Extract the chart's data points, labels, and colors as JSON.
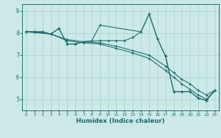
{
  "xlabel": "Humidex (Indice chaleur)",
  "xlim": [
    -0.5,
    23.5
  ],
  "ylim": [
    4.5,
    9.3
  ],
  "yticks": [
    5,
    6,
    7,
    8,
    9
  ],
  "xticks": [
    0,
    1,
    2,
    3,
    4,
    5,
    6,
    7,
    8,
    9,
    10,
    11,
    12,
    13,
    14,
    15,
    16,
    17,
    18,
    19,
    20,
    21,
    22,
    23
  ],
  "background_color": "#cce9e7",
  "grid_color": "#aad4d2",
  "line_color": "#1a6b6b",
  "lines": [
    {
      "x": [
        0,
        1,
        2,
        3,
        5,
        7,
        9,
        11,
        13,
        15,
        17,
        18,
        19,
        20,
        21,
        22,
        23
      ],
      "y": [
        8.05,
        8.05,
        8.05,
        7.95,
        7.7,
        7.6,
        7.55,
        7.4,
        7.2,
        7.0,
        6.5,
        6.2,
        5.9,
        5.7,
        5.4,
        5.2,
        5.4
      ]
    },
    {
      "x": [
        0,
        1,
        2,
        3,
        5,
        7,
        9,
        11,
        13,
        15,
        17,
        18,
        19,
        20,
        21,
        22,
        23
      ],
      "y": [
        8.05,
        8.05,
        8.05,
        7.95,
        7.65,
        7.55,
        7.5,
        7.3,
        7.1,
        6.85,
        6.3,
        6.0,
        5.7,
        5.45,
        5.2,
        5.0,
        5.4
      ]
    },
    {
      "x": [
        0,
        3,
        4,
        5,
        6,
        7,
        9,
        10,
        11,
        12,
        13,
        14,
        15,
        16,
        17,
        18,
        19,
        20,
        21,
        22,
        23
      ],
      "y": [
        8.05,
        7.95,
        8.2,
        7.5,
        7.5,
        7.6,
        7.65,
        7.65,
        7.65,
        7.65,
        7.8,
        8.05,
        8.85,
        7.75,
        6.95,
        5.35,
        5.35,
        5.35,
        5.05,
        4.95,
        5.4
      ]
    },
    {
      "x": [
        0,
        1,
        3,
        4,
        5,
        6,
        7,
        8,
        9,
        14,
        15,
        16,
        17,
        18,
        19,
        20,
        21,
        22,
        23
      ],
      "y": [
        8.05,
        8.05,
        7.95,
        8.2,
        7.5,
        7.5,
        7.6,
        7.65,
        8.35,
        8.05,
        8.85,
        7.75,
        6.95,
        5.35,
        5.35,
        5.35,
        5.05,
        4.95,
        5.4
      ]
    }
  ]
}
